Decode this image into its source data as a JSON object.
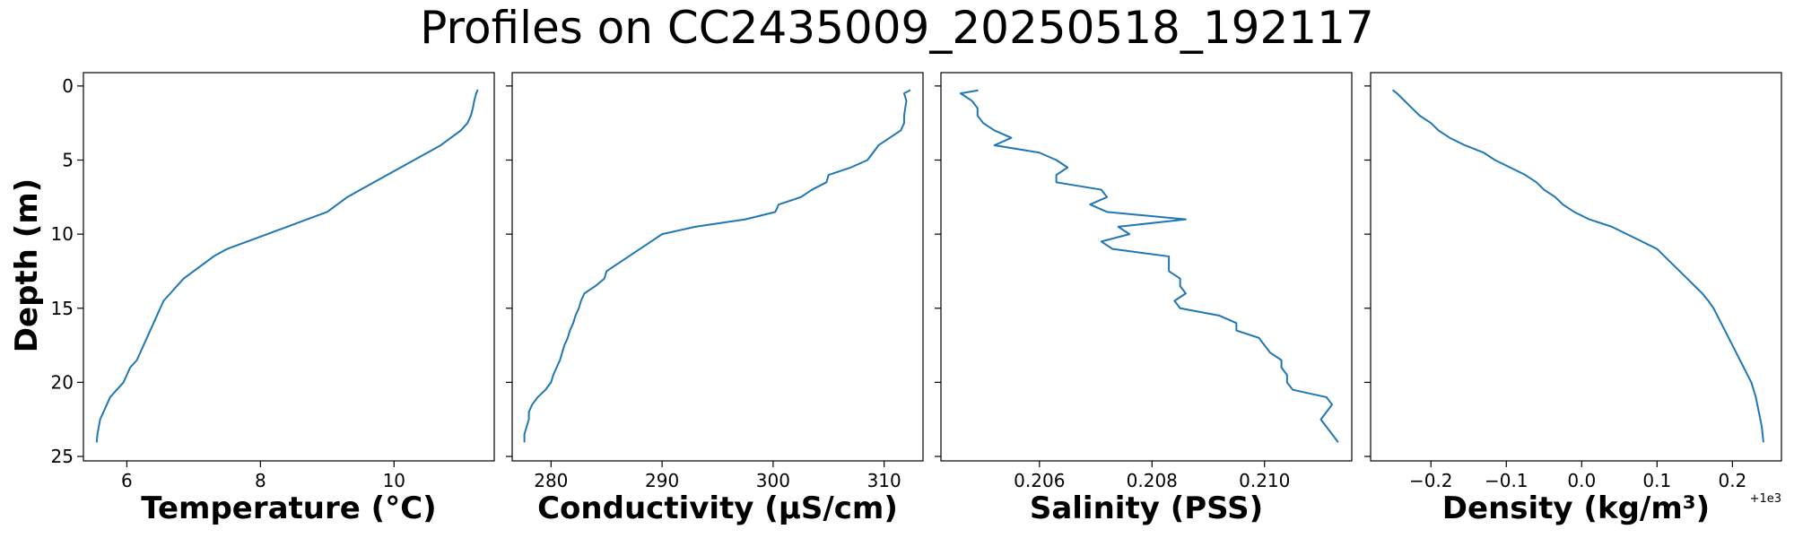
{
  "colors": {
    "line": "#1f77b4",
    "axis": "#000000",
    "background": "#ffffff"
  },
  "chart_data": {
    "type": "line",
    "title": "Profiles on CC2435009_20250518_192117",
    "shared_y": {
      "label": "Depth (m)",
      "lim": [
        25.3,
        -0.9
      ],
      "ticks": [
        0,
        5,
        10,
        15,
        20,
        25
      ],
      "tick_labels": [
        "0",
        "5",
        "10",
        "15",
        "20",
        "25"
      ],
      "inverted": true
    },
    "depth": [
      0.3,
      0.5,
      1.0,
      1.5,
      2.0,
      2.5,
      3.0,
      3.5,
      4.0,
      4.5,
      5.0,
      5.5,
      6.0,
      6.5,
      7.0,
      7.5,
      8.0,
      8.5,
      9.0,
      9.5,
      10.0,
      10.5,
      11.0,
      11.5,
      12.0,
      12.5,
      13.0,
      13.5,
      14.0,
      14.5,
      15.0,
      15.5,
      16.0,
      16.5,
      17.0,
      17.5,
      18.0,
      18.5,
      19.0,
      19.5,
      20.0,
      20.5,
      21.0,
      21.5,
      22.0,
      22.5,
      23.0,
      23.5,
      24.0
    ],
    "panels": [
      {
        "xlabel": "Temperature (°C)",
        "xlim": [
          5.35,
          11.5
        ],
        "ticks": [
          6,
          8,
          10
        ],
        "tick_labels": [
          "6",
          "8",
          "10"
        ],
        "offset": "",
        "values": [
          11.25,
          11.23,
          11.2,
          11.18,
          11.15,
          11.1,
          11.0,
          10.85,
          10.7,
          10.5,
          10.3,
          10.1,
          9.9,
          9.7,
          9.5,
          9.3,
          9.15,
          9.0,
          8.7,
          8.4,
          8.1,
          7.8,
          7.5,
          7.3,
          7.15,
          7.0,
          6.85,
          6.75,
          6.65,
          6.55,
          6.5,
          6.45,
          6.4,
          6.35,
          6.3,
          6.25,
          6.2,
          6.15,
          6.05,
          6.0,
          5.95,
          5.85,
          5.75,
          5.7,
          5.65,
          5.6,
          5.58,
          5.56,
          5.55
        ]
      },
      {
        "xlabel": "Conductivity (µS/cm)",
        "xlim": [
          276.5,
          313.5
        ],
        "ticks": [
          280,
          290,
          300,
          310
        ],
        "tick_labels": [
          "280",
          "290",
          "300",
          "310"
        ],
        "offset": "",
        "values": [
          312.3,
          311.8,
          312.0,
          311.9,
          311.8,
          311.8,
          311.5,
          310.5,
          309.5,
          309.0,
          308.5,
          307.0,
          305.0,
          304.8,
          303.5,
          302.5,
          300.5,
          300.2,
          297.5,
          293.0,
          290.0,
          289.0,
          288.0,
          287.0,
          286.0,
          285.0,
          284.8,
          284.0,
          283.0,
          282.7,
          282.5,
          282.2,
          282.0,
          281.7,
          281.5,
          281.2,
          281.0,
          280.8,
          280.5,
          280.2,
          280.0,
          279.5,
          278.8,
          278.3,
          278.0,
          278.0,
          277.8,
          277.6,
          277.6
        ]
      },
      {
        "xlabel": "Salinity (PSS)",
        "xlim": [
          0.20425,
          0.21155
        ],
        "ticks": [
          0.206,
          0.208,
          0.21
        ],
        "tick_labels": [
          "0.206",
          "0.208",
          "0.210"
        ],
        "offset": "",
        "values": [
          0.2049,
          0.2046,
          0.2048,
          0.2049,
          0.2049,
          0.205,
          0.2052,
          0.2055,
          0.2052,
          0.206,
          0.2063,
          0.2065,
          0.2063,
          0.2063,
          0.2071,
          0.2072,
          0.2069,
          0.2072,
          0.2086,
          0.2074,
          0.2076,
          0.2071,
          0.2073,
          0.2083,
          0.2083,
          0.2083,
          0.2085,
          0.2085,
          0.2086,
          0.2084,
          0.2085,
          0.2092,
          0.2095,
          0.2095,
          0.2099,
          0.21,
          0.2101,
          0.2103,
          0.2103,
          0.2104,
          0.2104,
          0.2105,
          0.2111,
          0.2112,
          0.2111,
          0.211,
          0.2111,
          0.2112,
          0.2113
        ]
      },
      {
        "xlabel": "Density (kg/m³)",
        "xlim": [
          -0.28,
          0.265
        ],
        "ticks": [
          -0.2,
          -0.1,
          0.0,
          0.1,
          0.2
        ],
        "tick_labels": [
          "−0.2",
          "−0.1",
          "0.0",
          "0.1",
          "0.2"
        ],
        "offset": "+1e3",
        "values": [
          -0.25,
          -0.245,
          -0.235,
          -0.225,
          -0.215,
          -0.2,
          -0.19,
          -0.175,
          -0.155,
          -0.13,
          -0.115,
          -0.095,
          -0.075,
          -0.06,
          -0.05,
          -0.035,
          -0.025,
          -0.01,
          0.01,
          0.04,
          0.06,
          0.08,
          0.1,
          0.11,
          0.12,
          0.13,
          0.14,
          0.15,
          0.16,
          0.168,
          0.175,
          0.18,
          0.185,
          0.19,
          0.195,
          0.2,
          0.205,
          0.21,
          0.215,
          0.22,
          0.225,
          0.228,
          0.231,
          0.233,
          0.235,
          0.237,
          0.239,
          0.24,
          0.241
        ]
      }
    ]
  }
}
